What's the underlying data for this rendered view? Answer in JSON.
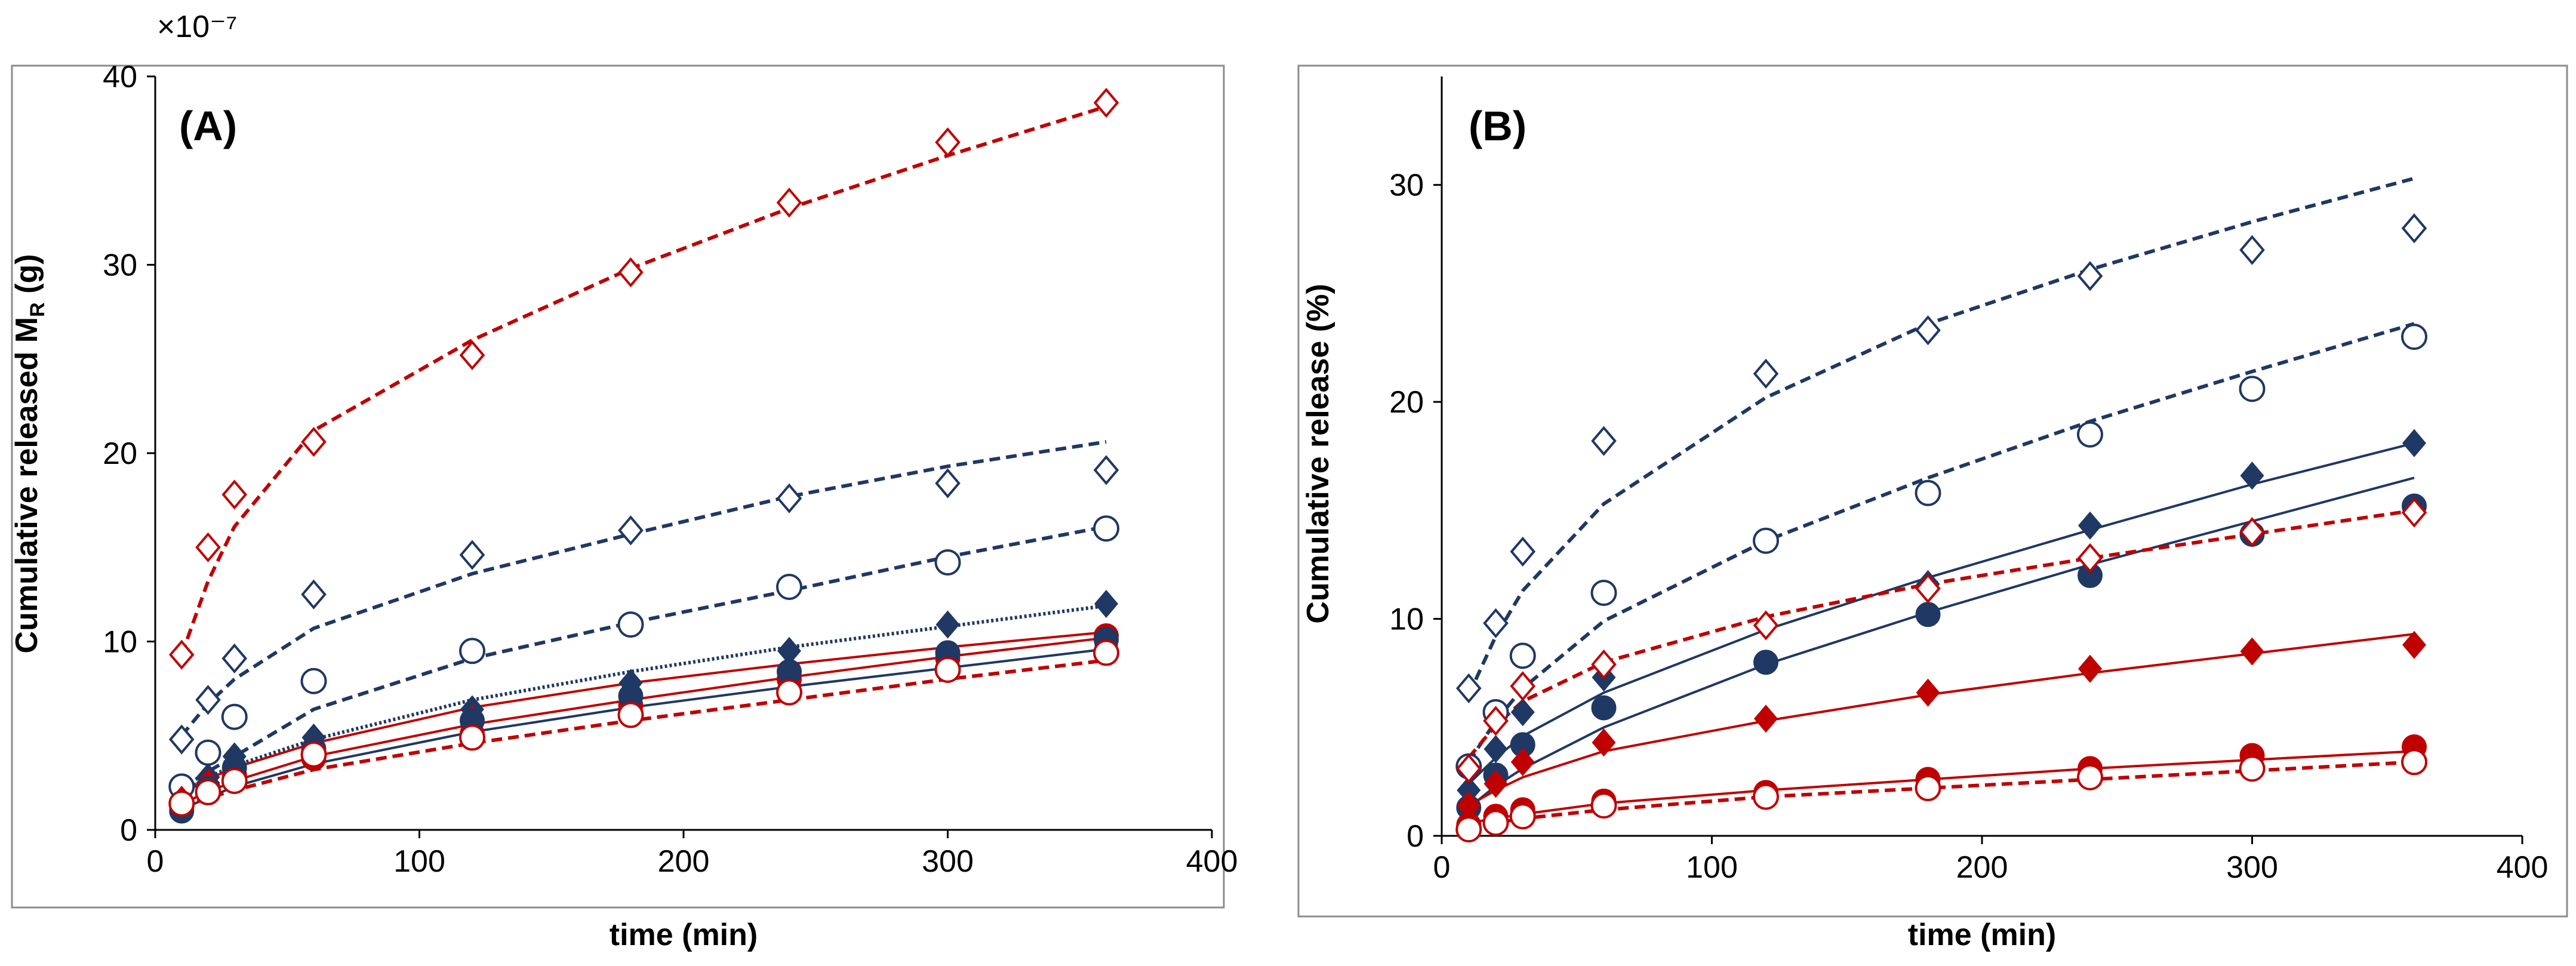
{
  "chart_data": [
    {
      "panel": "A",
      "type": "scatter",
      "panel_label": "(A)",
      "scale_label": "×10⁻⁷",
      "ylabel_main": "Cumulative released  M",
      "ylabel_sub": "R",
      "ylabel_unit": " (g)",
      "xlabel": "time (min)",
      "xlim": [
        0,
        400
      ],
      "ylim": [
        0,
        40
      ],
      "xticks": [
        0,
        100,
        200,
        300,
        400
      ],
      "yticks": [
        0,
        10,
        20,
        30,
        40
      ],
      "xtick_labels": [
        "0",
        "100",
        "200",
        "300",
        "400"
      ],
      "ytick_labels": [
        "0",
        "10",
        "20",
        "30",
        "40"
      ],
      "x": [
        10,
        20,
        30,
        60,
        120,
        180,
        240,
        300,
        360
      ],
      "colors": {
        "red": "#c00000",
        "navy": "#1f3864"
      },
      "series": [
        {
          "name": "red open diamond",
          "color": "#c00000",
          "marker": "diamond",
          "filled": false,
          "line": "dashed",
          "values": [
            9.3,
            15.0,
            17.8,
            20.6,
            25.2,
            29.6,
            33.3,
            36.5,
            38.6
          ],
          "fit": [
            9.3,
            13.2,
            16.1,
            21.2,
            26.0,
            29.8,
            33.0,
            35.8,
            38.4
          ]
        },
        {
          "name": "navy open diamond",
          "color": "#1f3864",
          "marker": "diamond",
          "filled": false,
          "line": "dashed",
          "values": [
            4.8,
            6.9,
            9.1,
            12.5,
            14.6,
            15.9,
            17.6,
            18.4,
            19.1
          ],
          "fit": [
            5.0,
            6.7,
            8.0,
            10.7,
            13.6,
            15.7,
            17.7,
            19.3,
            20.6
          ]
        },
        {
          "name": "navy open circle",
          "color": "#1f3864",
          "marker": "circle",
          "filled": false,
          "line": "dashed",
          "values": [
            2.3,
            4.1,
            6.0,
            7.9,
            9.5,
            10.9,
            12.9,
            14.2,
            16.0
          ],
          "fit": [
            2.2,
            3.1,
            3.9,
            6.4,
            9.1,
            11.0,
            12.7,
            14.5,
            16.1
          ]
        },
        {
          "name": "navy filled diamond",
          "color": "#1f3864",
          "marker": "diamond",
          "filled": true,
          "line": "dotted",
          "values": [
            1.3,
            2.8,
            3.9,
            4.9,
            6.4,
            7.8,
            9.5,
            10.9,
            12.0
          ],
          "fit": [
            2.0,
            2.8,
            3.4,
            4.8,
            6.9,
            8.4,
            9.7,
            10.8,
            11.9
          ]
        },
        {
          "name": "red filled diamond",
          "color": "#c00000",
          "marker": "diamond",
          "filled": true,
          "line": "solid",
          "values": [
            1.6,
            2.5,
            3.2,
            4.3,
            5.9,
            6.9,
            8.3,
            9.3,
            9.8
          ],
          "fit": [
            1.9,
            2.7,
            3.3,
            4.6,
            6.5,
            7.8,
            8.8,
            9.7,
            10.5
          ]
        },
        {
          "name": "red filled circle",
          "color": "#c00000",
          "marker": "circle",
          "filled": true,
          "line": "solid",
          "values": [
            1.2,
            2.1,
            2.9,
            3.8,
            5.1,
            6.6,
            8.0,
            9.1,
            10.3
          ],
          "fit": [
            1.4,
            2.0,
            2.6,
            3.9,
            5.6,
            6.9,
            8.1,
            9.2,
            10.2
          ]
        },
        {
          "name": "navy filled circle",
          "color": "#1f3864",
          "marker": "circle",
          "filled": true,
          "line": "solid",
          "values": [
            1.0,
            2.2,
            3.3,
            4.3,
            5.8,
            7.1,
            8.4,
            9.4,
            10.1
          ],
          "fit": [
            1.1,
            1.7,
            2.3,
            3.5,
            5.2,
            6.5,
            7.6,
            8.6,
            9.6
          ]
        },
        {
          "name": "red open circle",
          "color": "#c00000",
          "marker": "circle",
          "filled": false,
          "line": "dashed",
          "values": [
            1.4,
            2.0,
            2.6,
            4.0,
            4.9,
            6.1,
            7.3,
            8.5,
            9.4
          ],
          "fit": [
            1.2,
            1.7,
            2.1,
            3.2,
            4.6,
            5.8,
            6.9,
            8.0,
            9.0
          ]
        }
      ]
    },
    {
      "panel": "B",
      "type": "scatter",
      "panel_label": "(B)",
      "ylabel": "Cumulative release  (%)",
      "xlabel": "time (min)",
      "xlim": [
        0,
        400
      ],
      "ylim": [
        0,
        35
      ],
      "xticks": [
        0,
        100,
        200,
        300,
        400
      ],
      "yticks": [
        0,
        10,
        20,
        30
      ],
      "xtick_labels": [
        "0",
        "100",
        "200",
        "300",
        "400"
      ],
      "ytick_labels": [
        "0",
        "10",
        "20",
        "30"
      ],
      "x": [
        10,
        20,
        30,
        60,
        120,
        180,
        240,
        300,
        360
      ],
      "series": [
        {
          "name": "navy open diamond",
          "color": "#1f3864",
          "marker": "diamond",
          "filled": false,
          "line": "dashed",
          "values": [
            6.8,
            9.8,
            13.1,
            18.2,
            21.3,
            23.3,
            25.8,
            27.0,
            28.0
          ],
          "fit": [
            6.5,
            9.2,
            11.3,
            15.3,
            20.2,
            23.6,
            26.1,
            28.3,
            30.3
          ]
        },
        {
          "name": "navy open circle",
          "color": "#1f3864",
          "marker": "circle",
          "filled": false,
          "line": "dashed",
          "values": [
            3.2,
            5.7,
            8.3,
            11.2,
            13.6,
            15.8,
            18.5,
            20.6,
            23.0
          ],
          "fit": [
            3.4,
            5.3,
            6.8,
            9.9,
            13.6,
            16.5,
            19.1,
            21.4,
            23.6
          ]
        },
        {
          "name": "navy filled diamond",
          "color": "#1f3864",
          "marker": "diamond",
          "filled": true,
          "line": "solid",
          "values": [
            2.1,
            4.0,
            5.7,
            7.3,
            9.7,
            11.6,
            14.3,
            16.6,
            18.1
          ],
          "fit": [
            2.4,
            3.6,
            4.6,
            6.6,
            9.5,
            11.9,
            14.1,
            16.2,
            18.1
          ]
        },
        {
          "name": "navy filled circle",
          "color": "#1f3864",
          "marker": "circle",
          "filled": true,
          "line": "solid",
          "values": [
            1.3,
            2.8,
            4.2,
            5.9,
            8.0,
            10.2,
            12.0,
            13.9,
            15.2
          ],
          "fit": [
            1.3,
            2.3,
            3.1,
            5.0,
            7.9,
            10.3,
            12.5,
            14.5,
            16.5
          ]
        },
        {
          "name": "red open diamond",
          "color": "#c00000",
          "marker": "diamond",
          "filled": false,
          "line": "dashed",
          "values": [
            3.1,
            5.3,
            6.9,
            7.9,
            9.7,
            11.4,
            12.8,
            14.0,
            14.9
          ],
          "fit": [
            3.6,
            5.1,
            6.2,
            8.0,
            10.1,
            11.6,
            12.8,
            13.9,
            15.0
          ]
        },
        {
          "name": "red filled diamond",
          "color": "#c00000",
          "marker": "diamond",
          "filled": true,
          "line": "solid",
          "values": [
            1.4,
            2.4,
            3.4,
            4.3,
            5.4,
            6.6,
            7.7,
            8.5,
            8.8
          ],
          "fit": [
            1.4,
            2.1,
            2.7,
            3.9,
            5.3,
            6.5,
            7.5,
            8.4,
            9.3
          ]
        },
        {
          "name": "red filled circle",
          "color": "#c00000",
          "marker": "circle",
          "filled": true,
          "line": "solid",
          "values": [
            0.5,
            0.9,
            1.2,
            1.6,
            2.0,
            2.6,
            3.1,
            3.7,
            4.1
          ],
          "fit": [
            0.6,
            0.8,
            1.0,
            1.5,
            2.1,
            2.6,
            3.1,
            3.5,
            3.9
          ]
        },
        {
          "name": "red open circle",
          "color": "#c00000",
          "marker": "circle",
          "filled": false,
          "line": "dashed",
          "values": [
            0.3,
            0.6,
            0.9,
            1.4,
            1.8,
            2.2,
            2.7,
            3.1,
            3.4
          ],
          "fit": [
            0.4,
            0.6,
            0.8,
            1.2,
            1.8,
            2.2,
            2.6,
            3.0,
            3.4
          ]
        }
      ]
    }
  ]
}
